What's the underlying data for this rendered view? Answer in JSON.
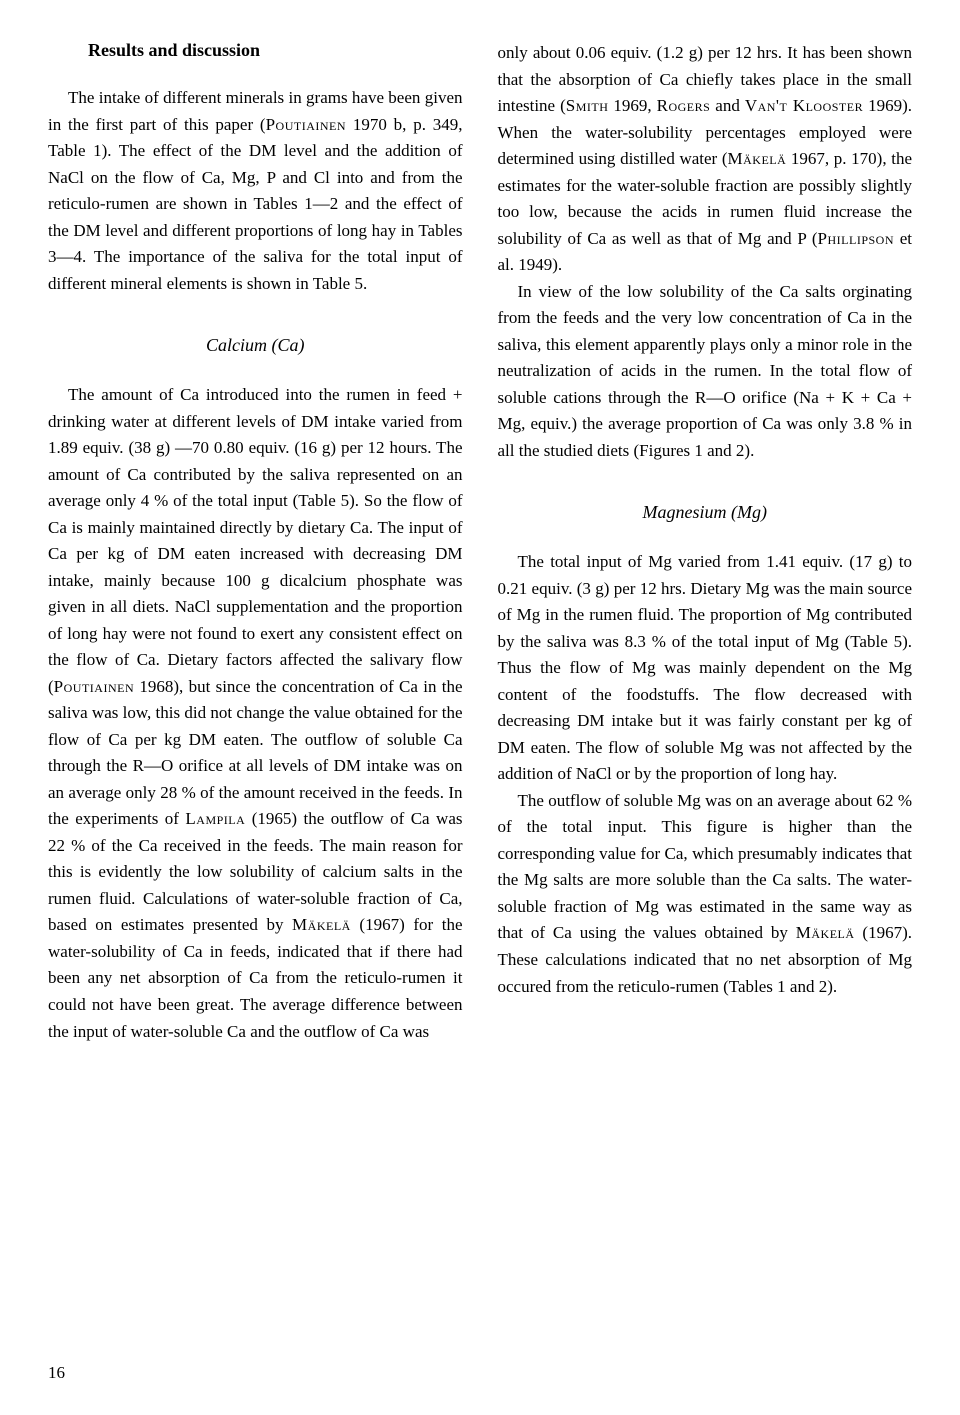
{
  "section_title": "Results and discussion",
  "intro_paragraph": "The intake of different minerals in grams have been given in the first part of this paper (Poutiainen 1970 b, p. 349, Table 1). The effect of the DM level and the addition of NaCl on the flow of Ca, Mg, P and Cl into and from the reticulo-rumen are shown in Tables 1—2 and the effect of the DM level and different proportions of long hay in Tables 3—4. The importance of the saliva for the total input of different mineral elements is shown in Table 5.",
  "calcium": {
    "title": "Calcium (Ca)",
    "para1": "The amount of Ca introduced into the rumen in feed + drinking water at different levels of DM intake varied from 1.89 equiv. (38 g) —70 0.80 equiv. (16 g) per 12 hours. The amount of Ca contributed by the saliva represented on an average only 4 % of the total input (Table 5). So the flow of Ca is mainly maintained directly by dietary Ca. The input of Ca per kg of DM eaten increased with decreasing DM intake, mainly because 100 g dicalcium phosphate was given in all diets. NaCl supplementation and the proportion of long hay were not found to exert any consistent effect on the flow of Ca. Dietary factors affected the salivary flow (Poutiainen 1968), but since the concentration of Ca in the saliva was low, this did not change the value obtained for the flow of Ca per kg DM eaten. The outflow of soluble Ca through the R—O orifice at all levels of DM intake was on an average only 28 % of the amount received in the feeds. In the experiments of Lampila (1965) the outflow of Ca was 22 % of the Ca received in the feeds. The main reason for this is evidently the low solubility of calcium salts in the rumen fluid. Calculations of water-soluble fraction of Ca, based on estimates presented by Mäkelä (1967) for the water-solubility of Ca in feeds, indicated that if there had been any net absorption of Ca from the reticulo-rumen it could not have been great. The average difference between the input of water-soluble Ca and the outflow of Ca was",
    "para2": "only about 0.06 equiv. (1.2 g) per 12 hrs. It has been shown that the absorption of Ca chiefly takes place in the small intestine (Smith 1969, Rogers and Van't Klooster 1969). When the water-solubility percentages employed were determined using distilled water (Mäkelä 1967, p. 170), the estimates for the water-soluble fraction are possibly slightly too low, because the acids in rumen fluid increase the solubility of Ca as well as that of Mg and P (Phillipson et al. 1949).",
    "para3": "In view of the low solubility of the Ca salts orginating from the feeds and the very low concentration of Ca in the saliva, this element apparently plays only a minor role in the neutralization of acids in the rumen. In the total flow of soluble cations through the R—O orifice (Na + K + Ca + Mg, equiv.) the average proportion of Ca was only 3.8 % in all the studied diets (Figures 1 and 2)."
  },
  "magnesium": {
    "title": "Magnesium (Mg)",
    "para1": "The total input of Mg varied from 1.41 equiv. (17 g) to 0.21 equiv. (3 g) per 12 hrs. Dietary Mg was the main source of Mg in the rumen fluid. The proportion of Mg contributed by the saliva was 8.3 % of the total input of Mg (Table 5). Thus the flow of Mg was mainly dependent on the Mg content of the foodstuffs. The flow decreased with decreasing DM intake but it was fairly constant per kg of DM eaten. The flow of soluble Mg was not affected by the addition of NaCl or by the proportion of long hay.",
    "para2": "The outflow of soluble Mg was on an average about 62 % of the total input. This figure is higher than the corresponding value for Ca, which presumably indicates that the Mg salts are more soluble than the Ca salts. The water-soluble fraction of Mg was estimated in the same way as that of Ca using the values obtained by Mäkelä (1967). These calculations indicated that no net absorption of Mg occured from the reticulo-rumen (Tables 1 and 2)."
  },
  "page_number": "16"
}
